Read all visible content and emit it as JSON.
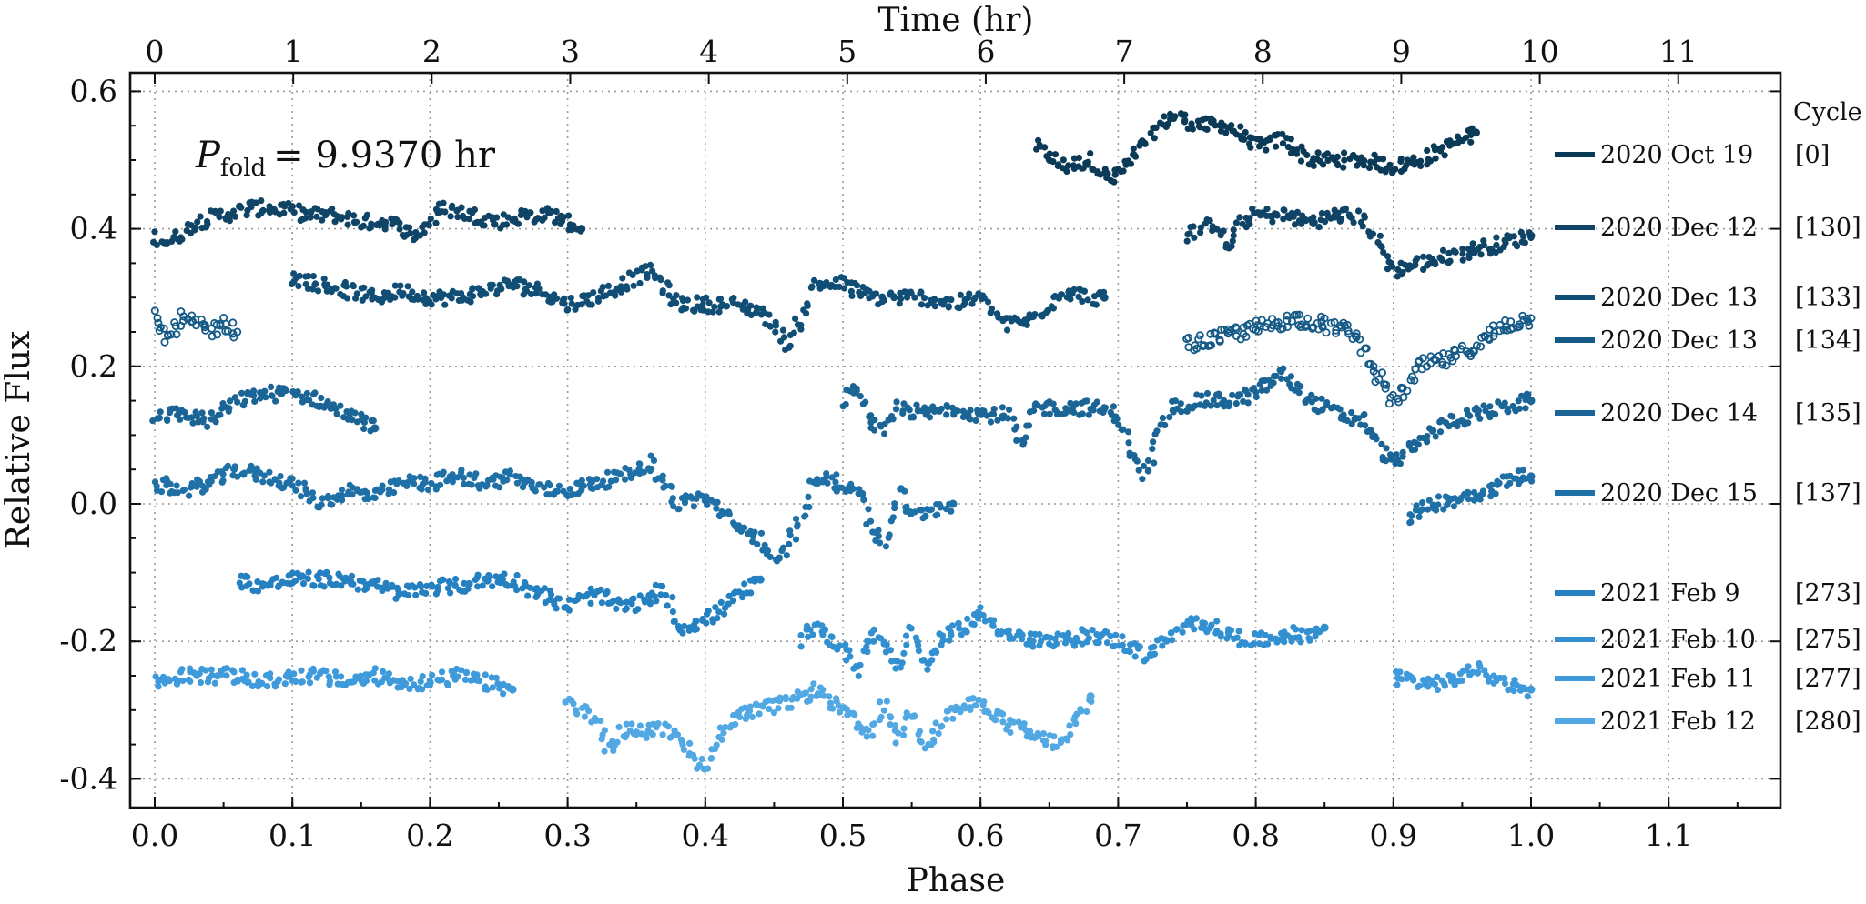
{
  "chart_data": {
    "type": "scatter",
    "title": "",
    "xlabel": "Phase",
    "ylabel": "Relative Flux",
    "top_xlabel": "Time (hr)",
    "period_label": {
      "symbol": "P",
      "subscript": "fold",
      "value_text": "= 9.9370 hr",
      "period_hr": 9.937
    },
    "xlim": [
      -0.02,
      1.18
    ],
    "ylim": [
      -0.44,
      0.6
    ],
    "grid": true,
    "x_ticks": [
      0.0,
      0.1,
      0.2,
      0.3,
      0.4,
      0.5,
      0.6,
      0.7,
      0.8,
      0.9,
      1.0,
      1.1
    ],
    "x_tick_labels": [
      "0.0",
      "0.1",
      "0.2",
      "0.3",
      "0.4",
      "0.5",
      "0.6",
      "0.7",
      "0.8",
      "0.9",
      "1.0",
      "1.1"
    ],
    "y_ticks": [
      0.6,
      0.4,
      0.2,
      0.0,
      -0.2,
      -0.4
    ],
    "y_tick_labels": [
      "0.6",
      "0.4",
      "0.2",
      "0.0",
      "-0.2",
      "-0.4"
    ],
    "top_ticks_hr": [
      0,
      1,
      2,
      3,
      4,
      5,
      6,
      7,
      8,
      9,
      10,
      11
    ],
    "top_tick_labels": [
      "0",
      "1",
      "2",
      "3",
      "4",
      "5",
      "6",
      "7",
      "8",
      "9",
      "10",
      "11"
    ],
    "legend_title": "Cycle",
    "series": [
      {
        "name": "2020 Oct 19",
        "cycle": "[0]",
        "color": "#0b3a57",
        "marker": "filled",
        "segments": [
          {
            "x": [
              0.64,
              0.66,
              0.68,
              0.695,
              0.71,
              0.73,
              0.74,
              0.76,
              0.78,
              0.8,
              0.82,
              0.84,
              0.86,
              0.88,
              0.9,
              0.92,
              0.94,
              0.96
            ],
            "y": [
              0.52,
              0.49,
              0.5,
              0.47,
              0.5,
              0.55,
              0.565,
              0.55,
              0.55,
              0.52,
              0.53,
              0.5,
              0.5,
              0.5,
              0.49,
              0.5,
              0.52,
              0.54
            ]
          }
        ]
      },
      {
        "name": "2020 Dec 12",
        "cycle": "[130]",
        "color": "#0f4466",
        "marker": "filled",
        "segments": [
          {
            "x": [
              0.0,
              0.01,
              0.03,
              0.05,
              0.07,
              0.09,
              0.11,
              0.13,
              0.15,
              0.17,
              0.19,
              0.21,
              0.23,
              0.25,
              0.27,
              0.29,
              0.31
            ],
            "y": [
              0.39,
              0.38,
              0.41,
              0.42,
              0.43,
              0.43,
              0.42,
              0.42,
              0.41,
              0.41,
              0.39,
              0.43,
              0.42,
              0.41,
              0.42,
              0.42,
              0.4
            ]
          },
          {
            "x": [
              0.75,
              0.77,
              0.78,
              0.79,
              0.8,
              0.82,
              0.84,
              0.86,
              0.87,
              0.88,
              0.9,
              0.92,
              0.94,
              0.96,
              0.98,
              1.0
            ],
            "y": [
              0.39,
              0.41,
              0.37,
              0.41,
              0.42,
              0.42,
              0.41,
              0.42,
              0.42,
              0.41,
              0.34,
              0.35,
              0.36,
              0.37,
              0.38,
              0.39
            ]
          }
        ]
      },
      {
        "name": "2020 Dec 13",
        "cycle": "[133]",
        "color": "#114e76",
        "marker": "filled",
        "segments": [
          {
            "x": [
              0.1,
              0.12,
              0.14,
              0.16,
              0.18,
              0.2,
              0.22,
              0.24,
              0.26,
              0.28,
              0.3,
              0.32,
              0.34,
              0.36,
              0.38,
              0.4,
              0.42,
              0.44,
              0.45,
              0.46,
              0.47,
              0.48,
              0.5,
              0.52,
              0.54,
              0.56,
              0.58,
              0.6,
              0.62,
              0.64,
              0.66,
              0.68,
              0.69
            ],
            "y": [
              0.33,
              0.32,
              0.31,
              0.3,
              0.31,
              0.3,
              0.3,
              0.31,
              0.32,
              0.31,
              0.29,
              0.3,
              0.32,
              0.34,
              0.29,
              0.29,
              0.29,
              0.28,
              0.26,
              0.23,
              0.27,
              0.32,
              0.32,
              0.3,
              0.3,
              0.3,
              0.29,
              0.3,
              0.26,
              0.27,
              0.31,
              0.3,
              0.3
            ]
          }
        ]
      },
      {
        "name": "2020 Dec 13",
        "cycle": "[134]",
        "color": "#155a86",
        "marker": "open",
        "segments": [
          {
            "x": [
              0.0,
              0.01,
              0.02,
              0.03,
              0.04,
              0.05,
              0.06
            ],
            "y": [
              0.27,
              0.24,
              0.27,
              0.26,
              0.25,
              0.26,
              0.25
            ]
          },
          {
            "x": [
              0.75,
              0.77,
              0.79,
              0.81,
              0.83,
              0.85,
              0.87,
              0.88,
              0.89,
              0.9,
              0.91,
              0.92,
              0.94,
              0.96,
              0.98,
              1.0
            ],
            "y": [
              0.23,
              0.24,
              0.25,
              0.26,
              0.27,
              0.26,
              0.25,
              0.22,
              0.18,
              0.15,
              0.17,
              0.2,
              0.21,
              0.23,
              0.26,
              0.27
            ]
          }
        ]
      },
      {
        "name": "2020 Dec 14",
        "cycle": "[135]",
        "color": "#1a6596",
        "marker": "filled",
        "segments": [
          {
            "x": [
              0.0,
              0.02,
              0.04,
              0.06,
              0.08,
              0.1,
              0.12,
              0.14,
              0.16
            ],
            "y": [
              0.13,
              0.13,
              0.12,
              0.15,
              0.16,
              0.16,
              0.15,
              0.13,
              0.11
            ]
          },
          {
            "x": [
              0.5,
              0.51,
              0.52,
              0.53,
              0.54,
              0.56,
              0.58,
              0.6,
              0.62,
              0.63,
              0.64,
              0.66,
              0.68,
              0.7,
              0.71,
              0.72,
              0.73,
              0.74,
              0.76,
              0.78,
              0.8,
              0.82,
              0.84,
              0.86,
              0.88,
              0.89,
              0.9,
              0.92,
              0.94,
              0.96,
              0.98,
              1.0
            ],
            "y": [
              0.15,
              0.17,
              0.12,
              0.1,
              0.14,
              0.13,
              0.14,
              0.13,
              0.13,
              0.08,
              0.14,
              0.14,
              0.14,
              0.13,
              0.07,
              0.04,
              0.1,
              0.14,
              0.15,
              0.15,
              0.16,
              0.19,
              0.15,
              0.13,
              0.12,
              0.08,
              0.06,
              0.09,
              0.12,
              0.13,
              0.14,
              0.15
            ]
          }
        ]
      },
      {
        "name": "2020 Dec 15",
        "cycle": "[137]",
        "color": "#1e70a6",
        "marker": "filled",
        "segments": [
          {
            "x": [
              0.0,
              0.02,
              0.04,
              0.06,
              0.08,
              0.1,
              0.12,
              0.14,
              0.16,
              0.18,
              0.2,
              0.22,
              0.24,
              0.26,
              0.28,
              0.3,
              0.32,
              0.34,
              0.36,
              0.38,
              0.4,
              0.42,
              0.44,
              0.45,
              0.46,
              0.47,
              0.48,
              0.49,
              0.5,
              0.51,
              0.52,
              0.53,
              0.54,
              0.55,
              0.56,
              0.58
            ],
            "y": [
              0.03,
              0.02,
              0.03,
              0.05,
              0.04,
              0.03,
              0.0,
              0.02,
              0.01,
              0.03,
              0.03,
              0.04,
              0.03,
              0.04,
              0.02,
              0.02,
              0.03,
              0.04,
              0.06,
              0.0,
              0.01,
              -0.03,
              -0.05,
              -0.09,
              -0.06,
              -0.02,
              0.04,
              0.04,
              0.02,
              0.03,
              -0.03,
              -0.06,
              0.02,
              -0.02,
              -0.01,
              0.0
            ]
          },
          {
            "x": [
              0.91,
              0.93,
              0.95,
              0.97,
              0.99,
              1.0
            ],
            "y": [
              -0.02,
              0.0,
              0.01,
              0.02,
              0.04,
              0.04
            ]
          }
        ]
      },
      {
        "name": "2021 Feb 9",
        "cycle": "[273]",
        "color": "#2480c0",
        "marker": "filled",
        "segments": [
          {
            "x": [
              0.06,
              0.08,
              0.1,
              0.12,
              0.14,
              0.16,
              0.18,
              0.2,
              0.22,
              0.24,
              0.26,
              0.28,
              0.3,
              0.32,
              0.34,
              0.36,
              0.37,
              0.38,
              0.4,
              0.42,
              0.44
            ],
            "y": [
              -0.11,
              -0.12,
              -0.11,
              -0.11,
              -0.11,
              -0.12,
              -0.13,
              -0.12,
              -0.12,
              -0.11,
              -0.11,
              -0.13,
              -0.15,
              -0.13,
              -0.15,
              -0.14,
              -0.12,
              -0.18,
              -0.17,
              -0.14,
              -0.11
            ]
          }
        ]
      },
      {
        "name": "2021 Feb 10",
        "cycle": "[275]",
        "color": "#3290d0",
        "marker": "filled",
        "segments": [
          {
            "x": [
              0.47,
              0.48,
              0.5,
              0.51,
              0.52,
              0.53,
              0.54,
              0.55,
              0.56,
              0.57,
              0.58,
              0.6,
              0.62,
              0.64,
              0.66,
              0.68,
              0.7,
              0.72,
              0.74,
              0.76,
              0.78,
              0.8,
              0.82,
              0.84,
              0.85
            ],
            "y": [
              -0.2,
              -0.18,
              -0.21,
              -0.24,
              -0.19,
              -0.2,
              -0.24,
              -0.18,
              -0.24,
              -0.2,
              -0.19,
              -0.16,
              -0.19,
              -0.2,
              -0.2,
              -0.19,
              -0.2,
              -0.22,
              -0.19,
              -0.17,
              -0.19,
              -0.2,
              -0.19,
              -0.19,
              -0.18
            ]
          }
        ]
      },
      {
        "name": "2021 Feb 11",
        "cycle": "[277]",
        "color": "#3e9adb",
        "marker": "filled",
        "segments": [
          {
            "x": [
              0.0,
              0.02,
              0.04,
              0.06,
              0.08,
              0.1,
              0.12,
              0.14,
              0.16,
              0.18,
              0.2,
              0.22,
              0.24,
              0.26
            ],
            "y": [
              -0.26,
              -0.25,
              -0.25,
              -0.25,
              -0.26,
              -0.25,
              -0.25,
              -0.26,
              -0.25,
              -0.26,
              -0.26,
              -0.25,
              -0.26,
              -0.27
            ]
          },
          {
            "x": [
              0.9,
              0.92,
              0.94,
              0.96,
              0.98,
              1.0
            ],
            "y": [
              -0.25,
              -0.26,
              -0.26,
              -0.24,
              -0.26,
              -0.27
            ]
          }
        ]
      },
      {
        "name": "2021 Feb 12",
        "cycle": "[280]",
        "color": "#52a8e2",
        "marker": "filled",
        "segments": [
          {
            "x": [
              0.3,
              0.32,
              0.33,
              0.34,
              0.36,
              0.38,
              0.39,
              0.4,
              0.42,
              0.44,
              0.46,
              0.48,
              0.5,
              0.52,
              0.53,
              0.54,
              0.55,
              0.56,
              0.58,
              0.6,
              0.62,
              0.64,
              0.66,
              0.68
            ],
            "y": [
              -0.29,
              -0.31,
              -0.36,
              -0.33,
              -0.33,
              -0.33,
              -0.37,
              -0.38,
              -0.31,
              -0.3,
              -0.29,
              -0.27,
              -0.3,
              -0.34,
              -0.29,
              -0.34,
              -0.3,
              -0.35,
              -0.3,
              -0.29,
              -0.32,
              -0.34,
              -0.35,
              -0.28
            ]
          }
        ]
      }
    ]
  }
}
